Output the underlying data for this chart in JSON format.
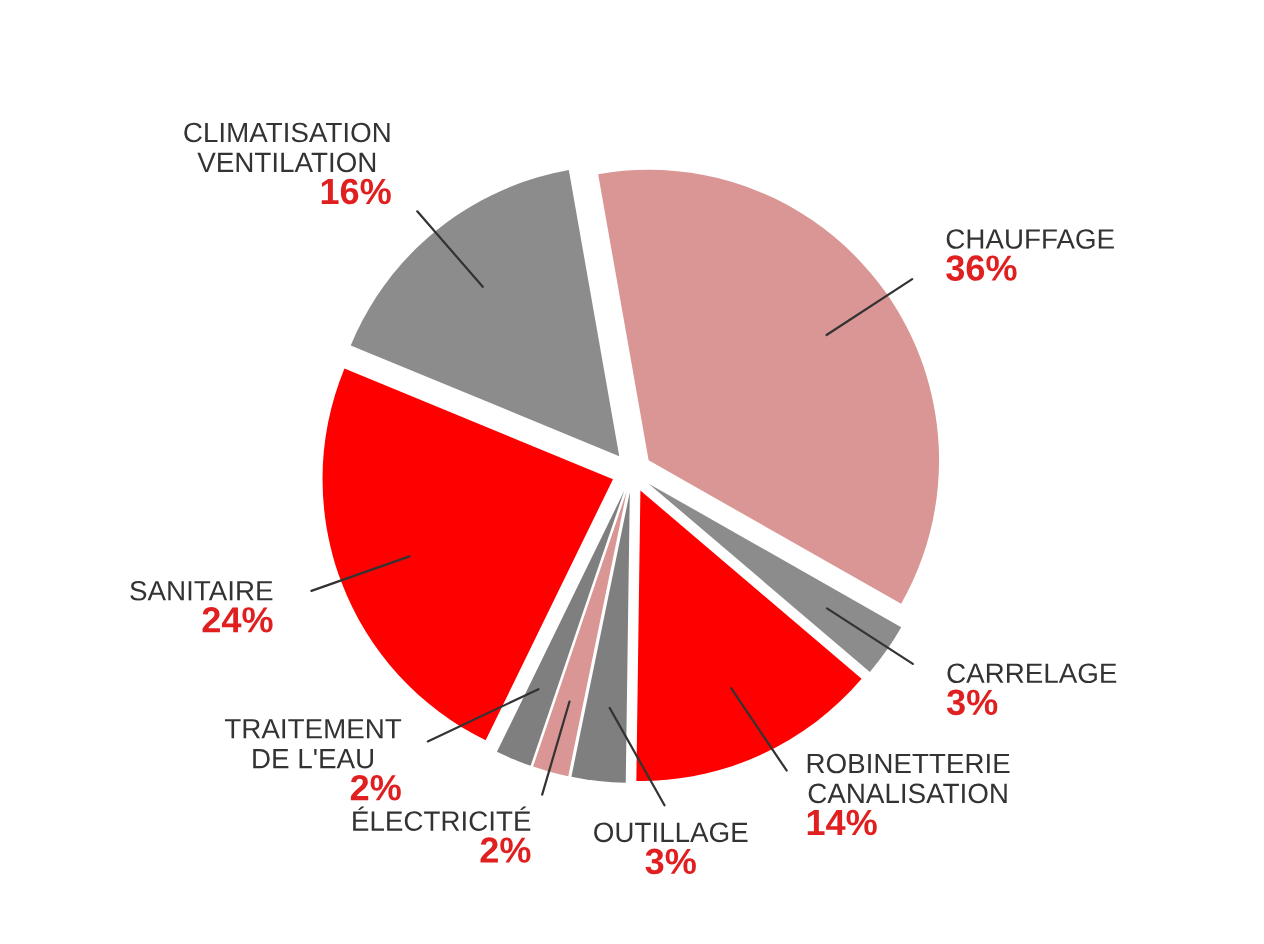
{
  "chart_data": {
    "type": "pie",
    "categories": [
      "CHAUFFAGE",
      "CARRELAGE",
      "ROBINETTERIE\nCANALISATION",
      "OUTILLAGE",
      "ÉLECTRICITÉ",
      "TRAITEMENT\nDE L'EAU",
      "SANITAIRE",
      "CLIMATISATION\nVENTILATION"
    ],
    "values": [
      36,
      3,
      14,
      3,
      2,
      2,
      24,
      16
    ],
    "value_labels": [
      "36%",
      "3%",
      "14%",
      "3%",
      "2%",
      "2%",
      "24%",
      "16%"
    ],
    "colors": [
      "#d99694",
      "#8c8c8c",
      "#ff0000",
      "#7f7f7f",
      "#d99694",
      "#7f7f7f",
      "#ff0000",
      "#8c8c8c"
    ]
  }
}
